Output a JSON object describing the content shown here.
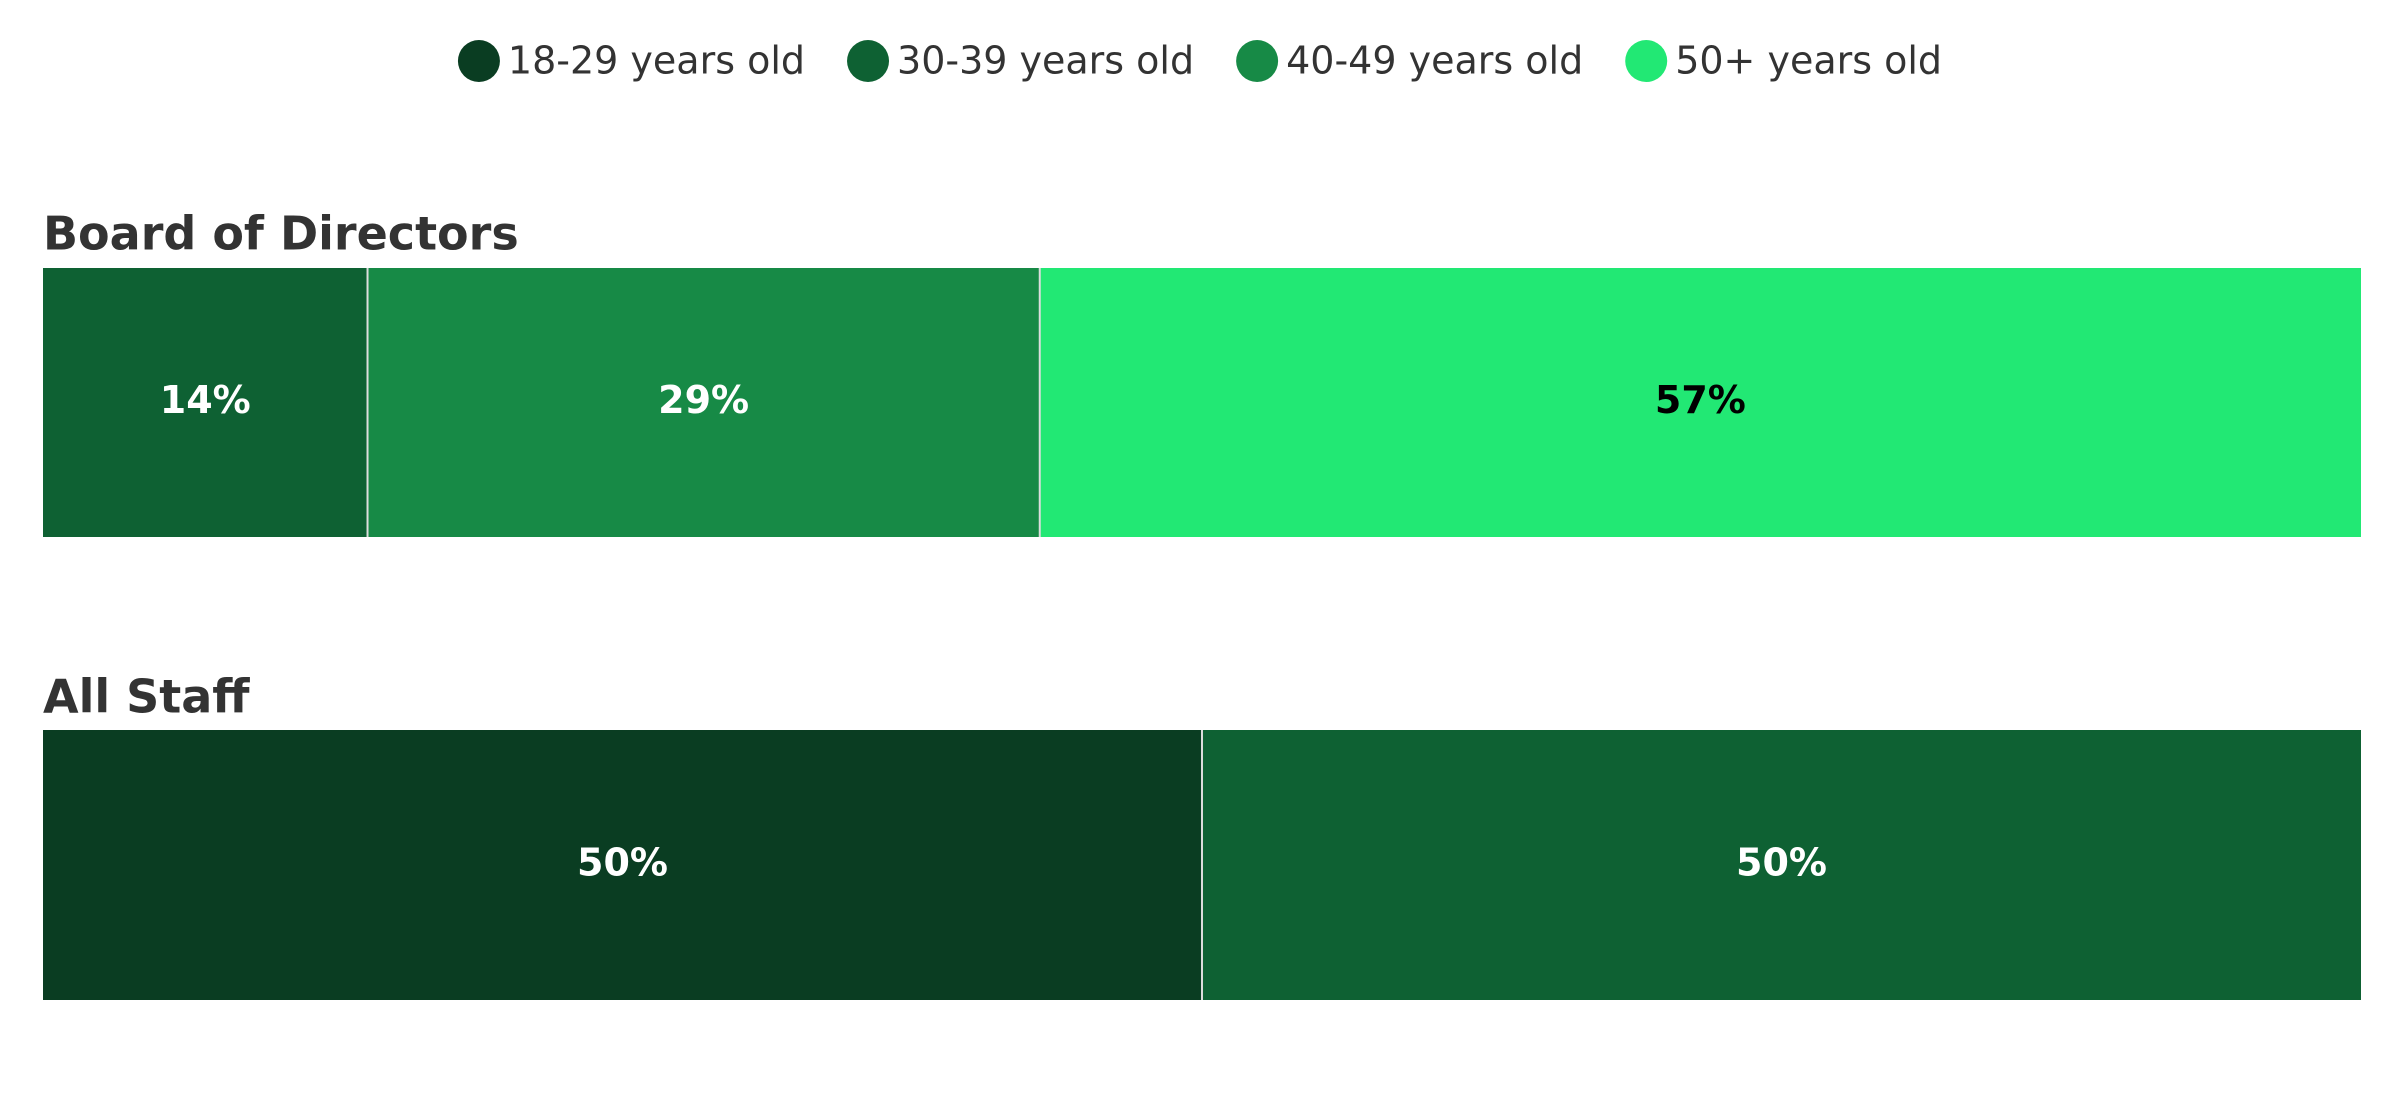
{
  "chart_data": {
    "type": "stacked-bar-horizontal",
    "categories": [
      "Board of Directors",
      "All Staff"
    ],
    "series": [
      {
        "name": "18-29 years old",
        "color": "#0a3d22",
        "values": [
          0,
          50
        ],
        "value_labels": [
          null,
          "50%"
        ]
      },
      {
        "name": "30-39 years old",
        "color": "#0e6133",
        "values": [
          14,
          50
        ],
        "value_labels": [
          "14%",
          "50%"
        ]
      },
      {
        "name": "40-49 years old",
        "color": "#178a46",
        "values": [
          29,
          0
        ],
        "value_labels": [
          "29%",
          null
        ]
      },
      {
        "name": "50+ years old",
        "color": "#22e874",
        "values": [
          57,
          0
        ],
        "value_labels": [
          "57%",
          null
        ]
      }
    ],
    "legend": "top"
  }
}
